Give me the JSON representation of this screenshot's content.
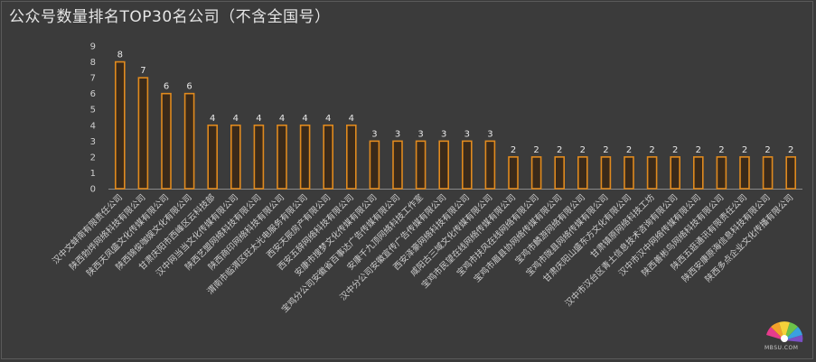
{
  "chart_data": {
    "type": "bar",
    "title": "公众号数量排名TOP30名公司（不含全国号）",
    "xlabel": "",
    "ylabel": "",
    "ylim": [
      0,
      9
    ],
    "yticks": [
      0,
      1,
      2,
      3,
      4,
      5,
      6,
      7,
      8,
      9
    ],
    "grid": false,
    "legend": "none",
    "colors": {
      "bar_fill": "#3a2a1a",
      "bar_stroke": "#e08a1e",
      "background": "#3b3b3b"
    },
    "categories": [
      "汉中文蚌南有限责任公司",
      "陕西勃烨网络科技有限公司",
      "陕西天凤盛文化传媒有限公司",
      "陕西锦俊咖娱文化有限公司",
      "甘肃庆阳市西峰区云科技部",
      "汉中网当当文化传媒有限公司",
      "陕西艺盟网络科技有限公司",
      "陕西商印网络科技有限公司",
      "渭南市临渭区旺太光电服务有限公司",
      "西安天辰房产有限公司",
      "西安五辞网络科技有限公司",
      "安康市搜梦文化传媒有限公司",
      "宝鸡分公司安徽省百事达广告传媒有限公司",
      "安康千九顶网络科技工作室",
      "汉中分公司安徽宣传广告传媒有限公司",
      "西安泽豪网络科技有限公司",
      "咸阳古三域文化传媒有限公司",
      "宝鸡市民望在线网络传媒有限公司",
      "宝鸡市扶风在线网络有限公司",
      "宝鸡市眉县协网络传媒有限公司",
      "宝鸡市麟游网络有限公司",
      "宝鸡市陇县网络传媒有限公司",
      "甘肃庆阳山盛东方文化有限公司",
      "甘肃镇原网络科技工坊",
      "汉中市汉台区青土信息技术咨询有限公司",
      "汉中市汉中网络传媒有限公司",
      "陕西善彬鸟网络科技有限公司",
      "陕西五逛通讯有限责任公司",
      "陕西安康原海信息科技有限公司",
      "陕西多点企业文化传播有限公司"
    ],
    "values": [
      8,
      7,
      6,
      6,
      4,
      4,
      4,
      4,
      4,
      4,
      4,
      3,
      3,
      3,
      3,
      3,
      3,
      2,
      2,
      2,
      2,
      2,
      2,
      2,
      2,
      2,
      2,
      2,
      2,
      2
    ]
  },
  "watermark": {
    "text": "MBSU.COM",
    "icon": "peacock-logo-icon"
  }
}
